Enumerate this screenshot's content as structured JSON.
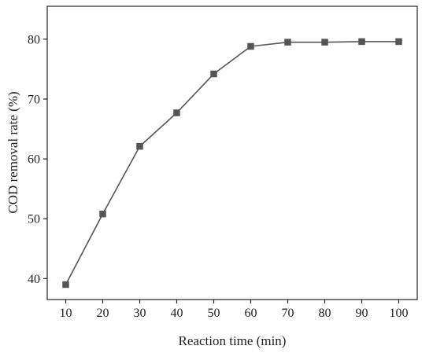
{
  "chart_data": {
    "type": "line",
    "title": "",
    "xlabel": "Reaction time (min)",
    "ylabel": "COD removal rate (%)",
    "x": [
      10,
      20,
      30,
      40,
      50,
      60,
      70,
      80,
      90,
      100
    ],
    "xticks": [
      "10",
      "20",
      "30",
      "40",
      "50",
      "60",
      "70",
      "80",
      "90",
      "100"
    ],
    "yticks": [
      "40",
      "50",
      "60",
      "70",
      "80"
    ],
    "xlim": [
      5,
      105
    ],
    "ylim": [
      36.5,
      85.5
    ],
    "grid": false,
    "legend": "none",
    "marker": "square",
    "line_color": "#555555",
    "series": [
      {
        "values": [
          39.0,
          50.8,
          62.1,
          67.7,
          74.2,
          78.8,
          79.5,
          79.5,
          79.6,
          79.6
        ]
      }
    ]
  }
}
